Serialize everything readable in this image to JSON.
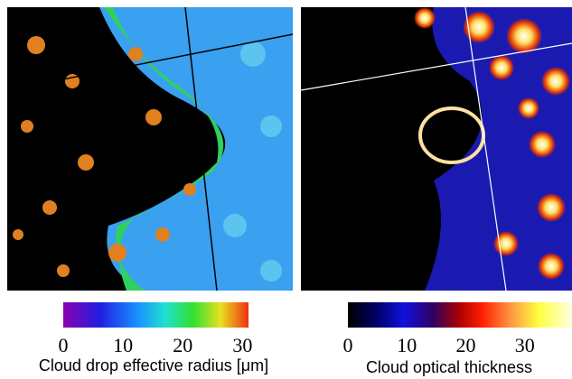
{
  "panels": [
    {
      "label": "Cloud drop effective radius [μm]",
      "colorbar": {
        "lim": [
          0,
          31
        ],
        "ticks": [
          0,
          10,
          20,
          30
        ]
      }
    },
    {
      "label": "Cloud optical thickness",
      "colorbar": {
        "lim": [
          0,
          38
        ],
        "ticks": [
          0,
          10,
          20,
          30
        ]
      }
    }
  ]
}
